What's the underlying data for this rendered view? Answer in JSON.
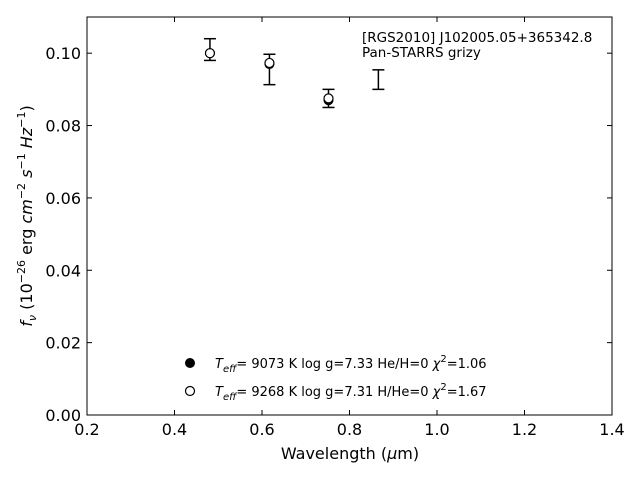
{
  "chart_data": {
    "type": "scatter",
    "xlabel": "Wavelength (μm)",
    "ylabel": "f_ν (10^-26 erg cm^-2 s^-1 Hz^-1)",
    "xlim": [
      0.2,
      1.4
    ],
    "ylim": [
      0.0,
      0.11
    ],
    "x_ticks": [
      "0.2",
      "0.4",
      "0.6",
      "0.8",
      "1.0",
      "1.2",
      "1.4"
    ],
    "y_ticks": [
      "0.00",
      "0.02",
      "0.04",
      "0.06",
      "0.08",
      "0.10"
    ],
    "annotation": [
      "[RGS2010] J102005.05+365342.8",
      "Pan-STARRS grizy"
    ],
    "observed": {
      "x": [
        0.481,
        0.617,
        0.752,
        0.866
      ],
      "y": [
        0.101,
        0.0955,
        0.0875,
        0.0927
      ],
      "yerr": [
        0.003,
        0.0042,
        0.0025,
        0.0027
      ]
    },
    "series": [
      {
        "marker": "filled-circle",
        "label": "T_eff= 9073 K log g=7.33 He/H=0 χ²=1.06",
        "x": [
          0.481,
          0.617,
          0.752
        ],
        "y": [
          0.1,
          0.097,
          0.087
        ]
      },
      {
        "marker": "open-circle",
        "label": "T_eff= 9268 K log g=7.31 H/He=0 χ²=1.67",
        "x": [
          0.481,
          0.617,
          0.752
        ],
        "y": [
          0.1,
          0.0973,
          0.0875
        ]
      }
    ],
    "legend": [
      {
        "marker": "filled-circle",
        "teff": "9073",
        "logg": "7.33",
        "comp": "He/H=0",
        "chi2": "1.06"
      },
      {
        "marker": "open-circle",
        "teff": "9268",
        "logg": "7.31",
        "comp": "H/He=0",
        "chi2": "1.67"
      }
    ],
    "legend_position": "lower-center",
    "grid": false,
    "colors": {
      "axis": "#000000",
      "marker": "#000000"
    }
  }
}
